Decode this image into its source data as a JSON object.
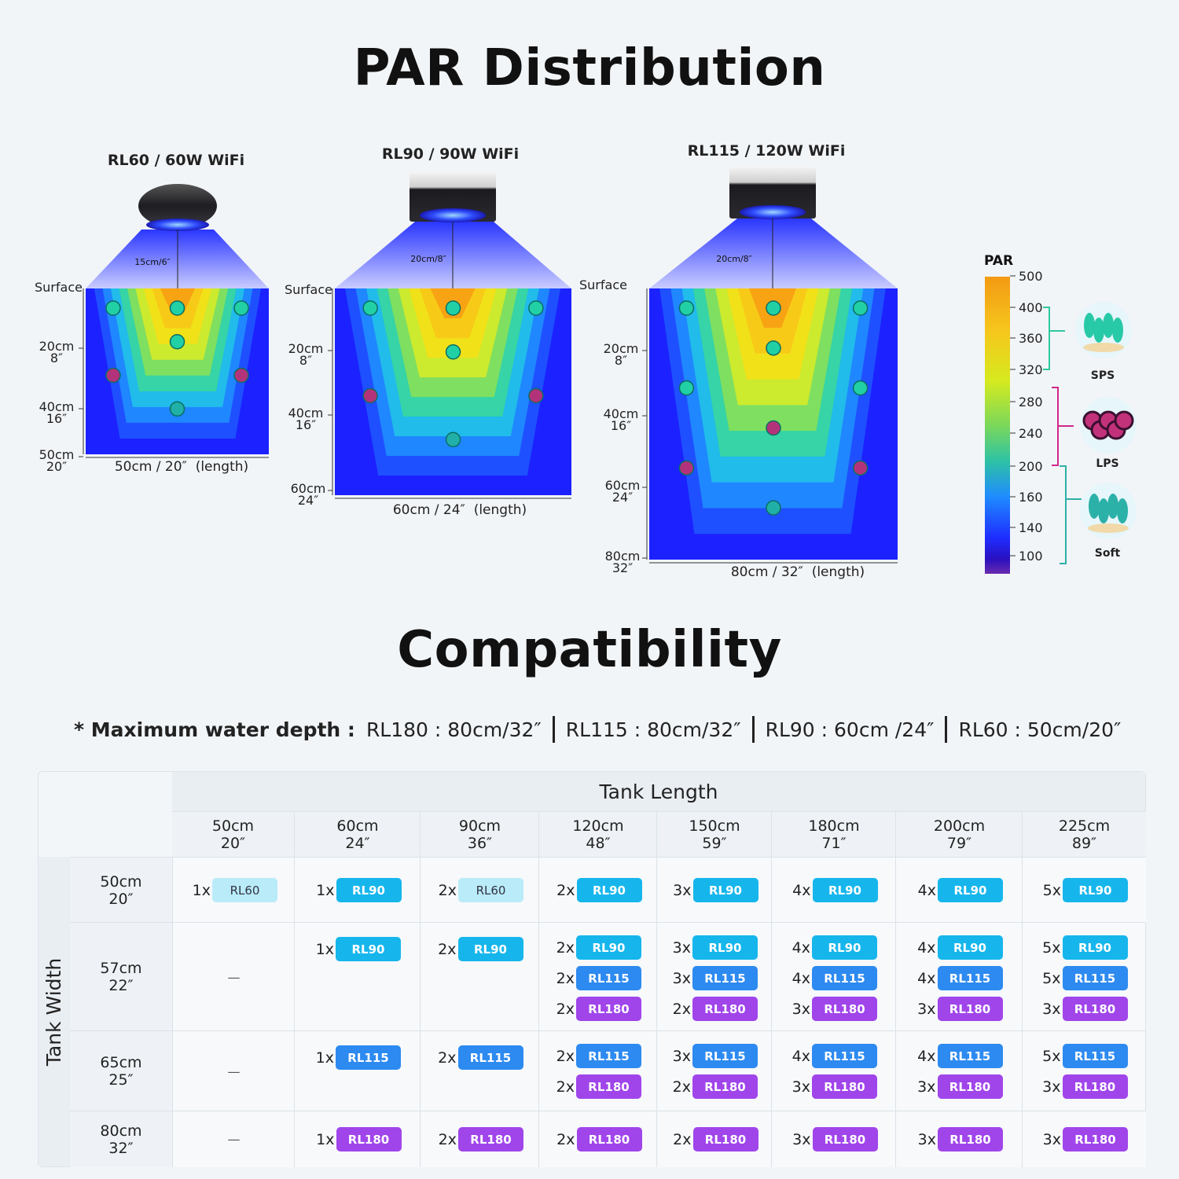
{
  "par_section": {
    "title": "PAR Distribution",
    "fixtures": [
      {
        "name": "RL60 / 60W WiFi",
        "beam": "15cm/6″",
        "length_label": "50cm / 20″  (length)",
        "surface": "Surface",
        "depths": [
          {
            "cm": "20cm",
            "in": "8″"
          },
          {
            "cm": "40cm",
            "in": "16″"
          },
          {
            "cm": "50cm",
            "in": "20″"
          }
        ]
      },
      {
        "name": "RL90 / 90W WiFi",
        "beam": "20cm/8″",
        "length_label": "60cm / 24″  (length)",
        "surface": "Surface",
        "depths": [
          {
            "cm": "20cm",
            "in": "8″"
          },
          {
            "cm": "40cm",
            "in": "16″"
          },
          {
            "cm": "60cm",
            "in": "24″"
          }
        ]
      },
      {
        "name": "RL115 / 120W WiFi",
        "beam": "20cm/8″",
        "length_label": "80cm / 32″  (length)",
        "surface": "Surface",
        "depths": [
          {
            "cm": "20cm",
            "in": "8″"
          },
          {
            "cm": "40cm",
            "in": "16″"
          },
          {
            "cm": "60cm",
            "in": "24″"
          },
          {
            "cm": "80cm",
            "in": "32″"
          }
        ]
      }
    ],
    "legend": {
      "title": "PAR",
      "ticks": [
        "500",
        "400",
        "360",
        "320",
        "280",
        "240",
        "200",
        "160",
        "140",
        "100"
      ],
      "corals": [
        {
          "name": "SPS",
          "icon": "sps-coral-icon",
          "color": "#2ec9a0"
        },
        {
          "name": "LPS",
          "icon": "lps-coral-icon",
          "color": "#c2327a"
        },
        {
          "name": "Soft",
          "icon": "soft-coral-icon",
          "color": "#2bb1a8"
        }
      ]
    }
  },
  "compat_section": {
    "title": "Compatibility",
    "max_depth": {
      "label": "* Maximum water depth :",
      "items": [
        "RL180 : 80cm/32″",
        "RL115 : 80cm/32″",
        "RL90 : 60cm /24″",
        "RL60 : 50cm/20″"
      ]
    },
    "table": {
      "length_title": "Tank Length",
      "width_title": "Tank Width",
      "columns": [
        {
          "cm": "50cm",
          "in": "20″"
        },
        {
          "cm": "60cm",
          "in": "24″"
        },
        {
          "cm": "90cm",
          "in": "36″"
        },
        {
          "cm": "120cm",
          "in": "48″"
        },
        {
          "cm": "150cm",
          "in": "59″"
        },
        {
          "cm": "180cm",
          "in": "71″"
        },
        {
          "cm": "200cm",
          "in": "79″"
        },
        {
          "cm": "225cm",
          "in": "89″"
        }
      ],
      "rows": [
        {
          "cm": "50cm",
          "in": "20″",
          "cells": [
            [
              [
                "1x",
                "RL60"
              ]
            ],
            [
              [
                "1x",
                "RL90"
              ]
            ],
            [
              [
                "2x",
                "RL60"
              ]
            ],
            [
              [
                "2x",
                "RL90"
              ]
            ],
            [
              [
                "3x",
                "RL90"
              ]
            ],
            [
              [
                "4x",
                "RL90"
              ]
            ],
            [
              [
                "4x",
                "RL90"
              ]
            ],
            [
              [
                "5x",
                "RL90"
              ]
            ]
          ]
        },
        {
          "cm": "57cm",
          "in": "22″",
          "cells": [
            [],
            [
              [
                "1x",
                "RL90"
              ]
            ],
            [
              [
                "2x",
                "RL90"
              ]
            ],
            [
              [
                "2x",
                "RL90"
              ],
              [
                "2x",
                "RL115"
              ],
              [
                "2x",
                "RL180"
              ]
            ],
            [
              [
                "3x",
                "RL90"
              ],
              [
                "3x",
                "RL115"
              ],
              [
                "2x",
                "RL180"
              ]
            ],
            [
              [
                "4x",
                "RL90"
              ],
              [
                "4x",
                "RL115"
              ],
              [
                "3x",
                "RL180"
              ]
            ],
            [
              [
                "4x",
                "RL90"
              ],
              [
                "4x",
                "RL115"
              ],
              [
                "3x",
                "RL180"
              ]
            ],
            [
              [
                "5x",
                "RL90"
              ],
              [
                "5x",
                "RL115"
              ],
              [
                "3x",
                "RL180"
              ]
            ]
          ]
        },
        {
          "cm": "65cm",
          "in": "25″",
          "cells": [
            [],
            [
              [
                "1x",
                "RL115"
              ]
            ],
            [
              [
                "2x",
                "RL115"
              ]
            ],
            [
              [
                "2x",
                "RL115"
              ],
              [
                "2x",
                "RL180"
              ]
            ],
            [
              [
                "3x",
                "RL115"
              ],
              [
                "2x",
                "RL180"
              ]
            ],
            [
              [
                "4x",
                "RL115"
              ],
              [
                "3x",
                "RL180"
              ]
            ],
            [
              [
                "4x",
                "RL115"
              ],
              [
                "3x",
                "RL180"
              ]
            ],
            [
              [
                "5x",
                "RL115"
              ],
              [
                "3x",
                "RL180"
              ]
            ]
          ]
        },
        {
          "cm": "80cm",
          "in": "32″",
          "cells": [
            [],
            [
              [
                "1x",
                "RL180"
              ]
            ],
            [
              [
                "2x",
                "RL180"
              ]
            ],
            [
              [
                "2x",
                "RL180"
              ]
            ],
            [
              [
                "2x",
                "RL180"
              ]
            ],
            [
              [
                "3x",
                "RL180"
              ]
            ],
            [
              [
                "3x",
                "RL180"
              ]
            ],
            [
              [
                "3x",
                "RL180"
              ]
            ]
          ]
        }
      ],
      "empty_mark": "—",
      "badge_colors": {
        "RL60": "#b9ecf8",
        "RL90": "#16b6ec",
        "RL115": "#2d8af0",
        "RL180": "#a045ea"
      }
    }
  }
}
